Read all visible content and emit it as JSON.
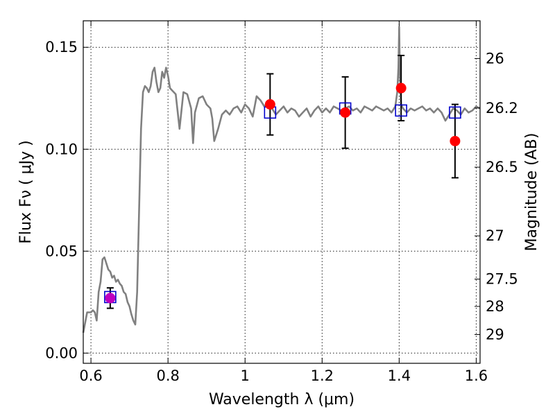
{
  "chart_data": {
    "type": "scatter",
    "title": "",
    "xlabel": "Wavelength  λ (μm)",
    "ylabel": "Flux  Fν  ( μJy )",
    "ylabel_right": "Magnitude (AB)",
    "xlim": [
      0.58,
      1.61
    ],
    "ylim": [
      -0.005,
      0.163
    ],
    "x_ticks": [
      0.6,
      0.8,
      1.0,
      1.2,
      1.4,
      1.6
    ],
    "x_tick_labels": [
      "0.6",
      "0.8",
      "1",
      "1.2",
      "1.4",
      "1.6"
    ],
    "y_ticks": [
      0.0,
      0.05,
      0.1,
      0.15
    ],
    "y_tick_labels": [
      "0.00",
      "0.05",
      "0.10",
      "0.15"
    ],
    "right_ticks": [
      {
        "label": "26",
        "flux": 0.1445
      },
      {
        "label": "26.2",
        "flux": 0.1202
      },
      {
        "label": "26.5",
        "flux": 0.0912
      },
      {
        "label": "27",
        "flux": 0.0575
      },
      {
        "label": "27.5",
        "flux": 0.0363
      },
      {
        "label": "28",
        "flux": 0.0229
      },
      {
        "label": "29",
        "flux": 0.0091
      }
    ],
    "grid": true,
    "colors": {
      "model": "#808080",
      "observed": "#ff0000",
      "observed_short": "#bf00bf",
      "synthetic": "#0000cc",
      "errorbar": "#000000"
    },
    "series": [
      {
        "kind": "line",
        "x": [
          0.58,
          0.59,
          0.6,
          0.605,
          0.61,
          0.615,
          0.62,
          0.625,
          0.63,
          0.635,
          0.64,
          0.645,
          0.65,
          0.655,
          0.66,
          0.665,
          0.67,
          0.675,
          0.68,
          0.685,
          0.69,
          0.695,
          0.7,
          0.705,
          0.71,
          0.715,
          0.72,
          0.725,
          0.73,
          0.735,
          0.74,
          0.745,
          0.75,
          0.755,
          0.76,
          0.765,
          0.77,
          0.775,
          0.78,
          0.785,
          0.79,
          0.795,
          0.8,
          0.805,
          0.81,
          0.82,
          0.83,
          0.84,
          0.85,
          0.86,
          0.865,
          0.87,
          0.88,
          0.89,
          0.9,
          0.91,
          0.915,
          0.92,
          0.93,
          0.94,
          0.95,
          0.96,
          0.97,
          0.98,
          0.99,
          1.0,
          1.01,
          1.02,
          1.03,
          1.04,
          1.05,
          1.06,
          1.07,
          1.08,
          1.09,
          1.1,
          1.11,
          1.12,
          1.13,
          1.14,
          1.15,
          1.16,
          1.17,
          1.18,
          1.19,
          1.2,
          1.21,
          1.22,
          1.23,
          1.24,
          1.25,
          1.26,
          1.27,
          1.28,
          1.29,
          1.3,
          1.31,
          1.32,
          1.33,
          1.34,
          1.35,
          1.36,
          1.37,
          1.38,
          1.39,
          1.395,
          1.398,
          1.4,
          1.402,
          1.405,
          1.41,
          1.42,
          1.43,
          1.44,
          1.45,
          1.46,
          1.47,
          1.48,
          1.49,
          1.5,
          1.51,
          1.52,
          1.53,
          1.54,
          1.55,
          1.56,
          1.57,
          1.58,
          1.59,
          1.6,
          1.61
        ],
        "y": [
          0.01,
          0.02,
          0.02,
          0.021,
          0.02,
          0.016,
          0.03,
          0.035,
          0.046,
          0.047,
          0.044,
          0.041,
          0.04,
          0.037,
          0.038,
          0.035,
          0.036,
          0.034,
          0.033,
          0.03,
          0.029,
          0.025,
          0.023,
          0.019,
          0.016,
          0.014,
          0.03,
          0.07,
          0.11,
          0.128,
          0.131,
          0.13,
          0.128,
          0.131,
          0.138,
          0.14,
          0.133,
          0.128,
          0.13,
          0.138,
          0.135,
          0.14,
          0.136,
          0.13,
          0.129,
          0.127,
          0.11,
          0.128,
          0.127,
          0.12,
          0.103,
          0.118,
          0.125,
          0.126,
          0.122,
          0.12,
          0.115,
          0.104,
          0.11,
          0.117,
          0.119,
          0.117,
          0.12,
          0.121,
          0.118,
          0.122,
          0.12,
          0.116,
          0.126,
          0.124,
          0.121,
          0.123,
          0.12,
          0.117,
          0.119,
          0.121,
          0.118,
          0.12,
          0.119,
          0.116,
          0.118,
          0.12,
          0.116,
          0.119,
          0.121,
          0.118,
          0.12,
          0.118,
          0.121,
          0.12,
          0.119,
          0.12,
          0.121,
          0.119,
          0.12,
          0.118,
          0.121,
          0.12,
          0.119,
          0.121,
          0.12,
          0.119,
          0.12,
          0.118,
          0.121,
          0.128,
          0.14,
          0.16,
          0.135,
          0.122,
          0.12,
          0.118,
          0.12,
          0.119,
          0.12,
          0.121,
          0.119,
          0.12,
          0.118,
          0.12,
          0.118,
          0.114,
          0.117,
          0.12,
          0.119,
          0.117,
          0.12,
          0.118,
          0.119,
          0.121,
          0.12
        ]
      },
      {
        "kind": "synthetic_photometry",
        "marker": "open-square",
        "x": [
          0.65,
          1.065,
          1.26,
          1.405,
          1.545
        ],
        "y": [
          0.0275,
          0.118,
          0.12,
          0.119,
          0.118
        ]
      },
      {
        "kind": "observed_photometry",
        "marker": "filled-circle",
        "x": [
          0.65,
          1.065,
          1.26,
          1.405,
          1.545
        ],
        "y": [
          0.027,
          0.122,
          0.118,
          0.13,
          0.104
        ],
        "yerr": [
          0.005,
          0.015,
          0.0175,
          0.016,
          0.018
        ],
        "color_keys": [
          "observed_short",
          "observed",
          "observed",
          "observed",
          "observed"
        ]
      }
    ]
  }
}
